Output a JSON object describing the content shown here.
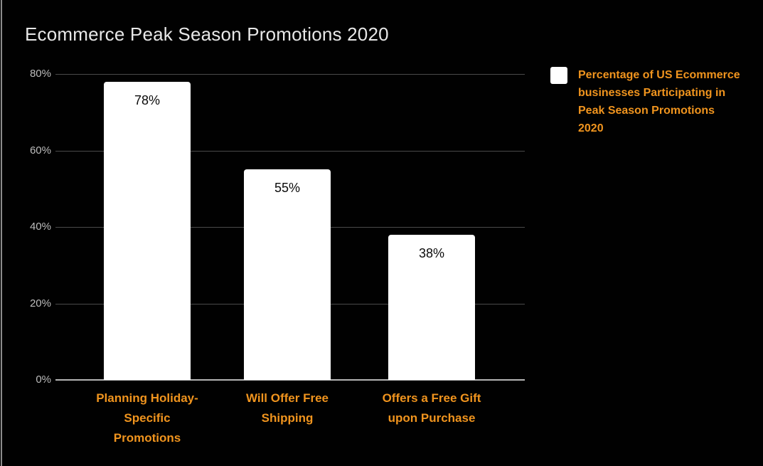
{
  "title": "Ecommerce Peak Season Promotions 2020",
  "colors": {
    "background": "#010101",
    "accent_orange": "#F0941E",
    "bar_fill": "#FFFFFF",
    "title_text": "#E7E7E7",
    "tick_text": "#BDBDBD",
    "gridline": "#4A4A4A",
    "axis_baseline": "#B5B5B5",
    "value_label_text": "#0B0B0B"
  },
  "legend": {
    "label": "Percentage of US Ecommerce businesses Participating in Peak Season Promotions 2020",
    "swatch_color": "#FFFFFF",
    "position": "right"
  },
  "chart_data": {
    "type": "bar",
    "title": "Ecommerce Peak Season Promotions 2020",
    "categories": [
      "Planning Holiday-Specific Promotions",
      "Will Offer Free Shipping",
      "Offers a Free Gift upon Purchase"
    ],
    "category_label_lines": [
      [
        "Planning Holiday-",
        "Specific",
        "Promotions"
      ],
      [
        "Will Offer Free",
        "Shipping"
      ],
      [
        "Offers a Free Gift",
        "upon Purchase"
      ]
    ],
    "values": [
      78,
      55,
      38
    ],
    "value_labels": [
      "78%",
      "55%",
      "38%"
    ],
    "series_name": "Percentage of US Ecommerce businesses Participating in Peak Season Promotions 2020",
    "xlabel": "",
    "ylabel": "",
    "ylim": [
      0,
      80
    ],
    "yticks": [
      0,
      20,
      40,
      60,
      80
    ],
    "ytick_labels": [
      "0%",
      "20%",
      "40%",
      "60%",
      "80%"
    ],
    "grid": true,
    "legend_position": "right",
    "bar_color": "#FFFFFF",
    "category_label_color": "#F0941E"
  }
}
